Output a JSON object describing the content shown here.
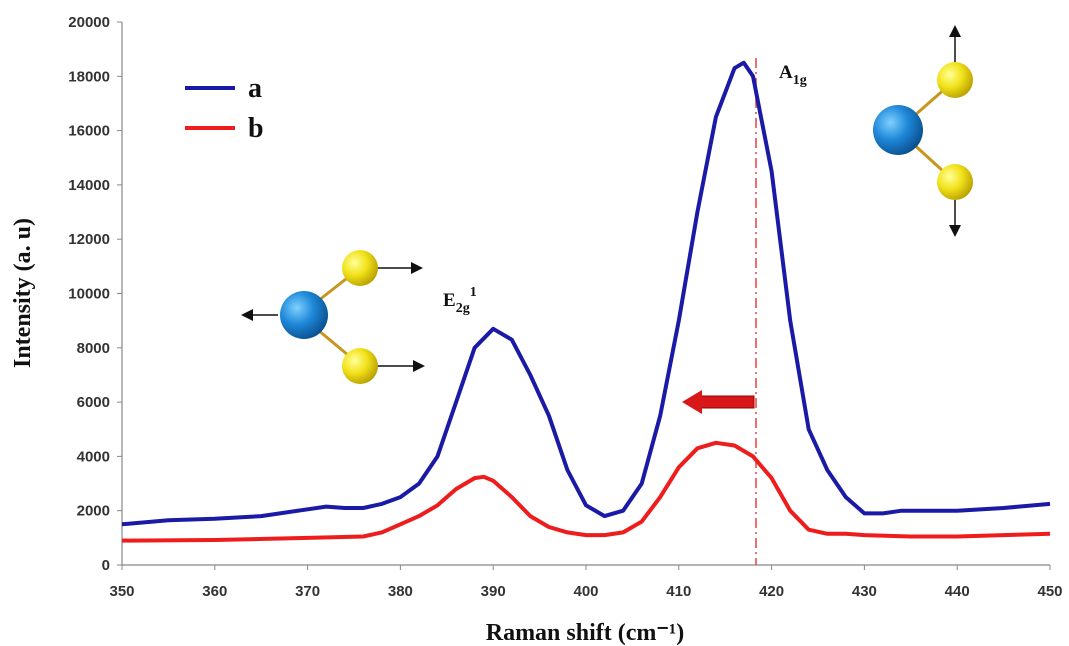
{
  "chart_data": {
    "type": "line",
    "x_label": "Raman shift (cm⁻¹)",
    "y_label": "Intensity (a. u)",
    "xlim": [
      350,
      450
    ],
    "ylim": [
      0,
      20000
    ],
    "xticks": [
      350,
      360,
      370,
      380,
      390,
      400,
      410,
      420,
      430,
      440,
      450
    ],
    "yticks": [
      0,
      2000,
      4000,
      6000,
      8000,
      10000,
      12000,
      14000,
      16000,
      18000,
      20000
    ],
    "legend": "upper left",
    "series": [
      {
        "name": "a",
        "color": "#1a1aa6",
        "x": [
          350,
          355,
          360,
          365,
          370,
          372,
          374,
          376,
          378,
          380,
          382,
          384,
          386,
          388,
          390,
          392,
          394,
          396,
          398,
          400,
          402,
          404,
          406,
          408,
          410,
          412,
          414,
          416,
          417,
          418,
          420,
          422,
          424,
          426,
          428,
          430,
          432,
          434,
          440,
          445,
          450
        ],
        "values": [
          1500,
          1650,
          1700,
          1800,
          2050,
          2150,
          2100,
          2100,
          2250,
          2500,
          3000,
          4000,
          6000,
          8000,
          8700,
          8300,
          7000,
          5500,
          3500,
          2200,
          1800,
          2000,
          3000,
          5500,
          9000,
          13000,
          16500,
          18300,
          18500,
          18000,
          14500,
          9000,
          5000,
          3500,
          2500,
          1900,
          1900,
          2000,
          2000,
          2100,
          2250
        ]
      },
      {
        "name": "b",
        "color": "#ee1c1c",
        "x": [
          350,
          360,
          370,
          376,
          378,
          380,
          382,
          384,
          386,
          388,
          389,
          390,
          392,
          394,
          396,
          398,
          400,
          402,
          404,
          406,
          408,
          410,
          412,
          414,
          416,
          418,
          420,
          422,
          424,
          426,
          428,
          430,
          435,
          440,
          445,
          450
        ],
        "values": [
          900,
          920,
          1000,
          1050,
          1200,
          1500,
          1800,
          2200,
          2800,
          3200,
          3250,
          3100,
          2500,
          1800,
          1400,
          1200,
          1100,
          1100,
          1200,
          1600,
          2500,
          3600,
          4300,
          4500,
          4400,
          4000,
          3200,
          2000,
          1300,
          1150,
          1150,
          1100,
          1050,
          1050,
          1100,
          1150
        ]
      }
    ],
    "annotations": [
      {
        "text": "A",
        "sub": "1g"
      },
      {
        "text": "E",
        "sub": "2g",
        "sup": "1"
      }
    ]
  }
}
